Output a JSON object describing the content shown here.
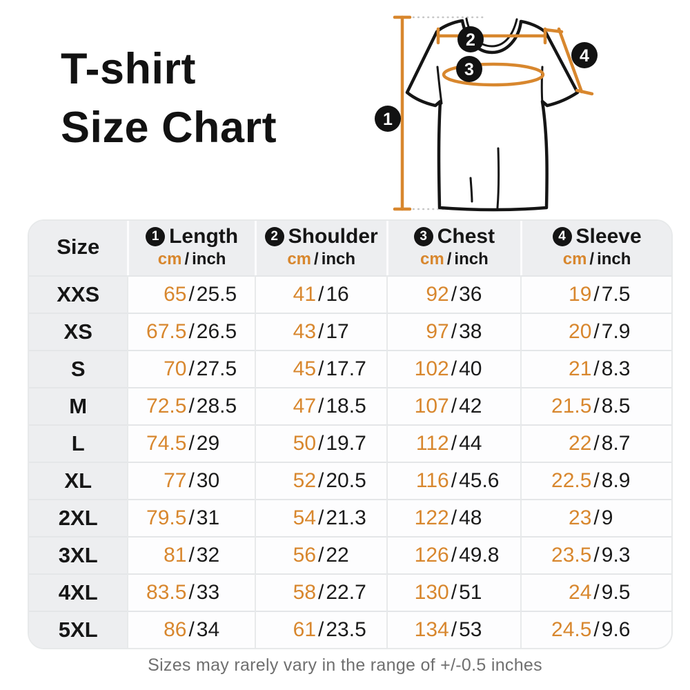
{
  "title": {
    "line1": "T-shirt",
    "line2": "Size Chart"
  },
  "colors": {
    "accent": "#D8872E",
    "marker_bg": "#121212",
    "header_bg": "#EDEEF0",
    "note_gray": "#6F6F6F"
  },
  "diagram": {
    "description": "t-shirt line drawing with measurement markers",
    "markers": {
      "m1": "1",
      "m2": "2",
      "m3": "3",
      "m4": "4"
    }
  },
  "table": {
    "size_header": "Size",
    "units": {
      "cm": "cm",
      "sep": "/",
      "inch": "inch"
    },
    "columns": [
      {
        "num": "1",
        "label": "Length"
      },
      {
        "num": "2",
        "label": "Shoulder"
      },
      {
        "num": "3",
        "label": "Chest"
      },
      {
        "num": "4",
        "label": "Sleeve"
      }
    ],
    "rows": [
      {
        "size": "XXS",
        "values": [
          [
            "65",
            "25.5"
          ],
          [
            "41",
            "16"
          ],
          [
            "92",
            "36"
          ],
          [
            "19",
            "7.5"
          ]
        ]
      },
      {
        "size": "XS",
        "values": [
          [
            "67.5",
            "26.5"
          ],
          [
            "43",
            "17"
          ],
          [
            "97",
            "38"
          ],
          [
            "20",
            "7.9"
          ]
        ]
      },
      {
        "size": "S",
        "values": [
          [
            "70",
            "27.5"
          ],
          [
            "45",
            "17.7"
          ],
          [
            "102",
            "40"
          ],
          [
            "21",
            "8.3"
          ]
        ]
      },
      {
        "size": "M",
        "values": [
          [
            "72.5",
            "28.5"
          ],
          [
            "47",
            "18.5"
          ],
          [
            "107",
            "42"
          ],
          [
            "21.5",
            "8.5"
          ]
        ]
      },
      {
        "size": "L",
        "values": [
          [
            "74.5",
            "29"
          ],
          [
            "50",
            "19.7"
          ],
          [
            "112",
            "44"
          ],
          [
            "22",
            "8.7"
          ]
        ]
      },
      {
        "size": "XL",
        "values": [
          [
            "77",
            "30"
          ],
          [
            "52",
            "20.5"
          ],
          [
            "116",
            "45.6"
          ],
          [
            "22.5",
            "8.9"
          ]
        ]
      },
      {
        "size": "2XL",
        "values": [
          [
            "79.5",
            "31"
          ],
          [
            "54",
            "21.3"
          ],
          [
            "122",
            "48"
          ],
          [
            "23",
            "9"
          ]
        ]
      },
      {
        "size": "3XL",
        "values": [
          [
            "81",
            "32"
          ],
          [
            "56",
            "22"
          ],
          [
            "126",
            "49.8"
          ],
          [
            "23.5",
            "9.3"
          ]
        ]
      },
      {
        "size": "4XL",
        "values": [
          [
            "83.5",
            "33"
          ],
          [
            "58",
            "22.7"
          ],
          [
            "130",
            "51"
          ],
          [
            "24",
            "9.5"
          ]
        ]
      },
      {
        "size": "5XL",
        "values": [
          [
            "86",
            "34"
          ],
          [
            "61",
            "23.5"
          ],
          [
            "134",
            "53"
          ],
          [
            "24.5",
            "9.6"
          ]
        ]
      }
    ]
  },
  "footer": {
    "note": "Sizes may rarely vary in the range of +/-0.5 inches"
  },
  "chart_data": {
    "type": "table",
    "title": "T-shirt Size Chart",
    "columns": [
      "Size",
      "Length cm",
      "Length inch",
      "Shoulder cm",
      "Shoulder inch",
      "Chest cm",
      "Chest inch",
      "Sleeve cm",
      "Sleeve inch"
    ],
    "rows": [
      [
        "XXS",
        65,
        25.5,
        41,
        16,
        92,
        36,
        19,
        7.5
      ],
      [
        "XS",
        67.5,
        26.5,
        43,
        17,
        97,
        38,
        20,
        7.9
      ],
      [
        "S",
        70,
        27.5,
        45,
        17.7,
        102,
        40,
        21,
        8.3
      ],
      [
        "M",
        72.5,
        28.5,
        47,
        18.5,
        107,
        42,
        21.5,
        8.5
      ],
      [
        "L",
        74.5,
        29,
        50,
        19.7,
        112,
        44,
        22,
        8.7
      ],
      [
        "XL",
        77,
        30,
        52,
        20.5,
        116,
        45.6,
        22.5,
        8.9
      ],
      [
        "2XL",
        79.5,
        31,
        54,
        21.3,
        122,
        48,
        23,
        9
      ],
      [
        "3XL",
        81,
        32,
        56,
        22,
        126,
        49.8,
        23.5,
        9.3
      ],
      [
        "4XL",
        83.5,
        33,
        58,
        22.7,
        130,
        51,
        24,
        9.5
      ],
      [
        "5XL",
        86,
        34,
        61,
        23.5,
        134,
        53,
        24.5,
        9.6
      ]
    ],
    "annotations": [
      "Sizes may rarely vary in the range of +/-0.5 inches"
    ],
    "legend_markers": {
      "1": "Length",
      "2": "Shoulder",
      "3": "Chest",
      "4": "Sleeve"
    }
  }
}
